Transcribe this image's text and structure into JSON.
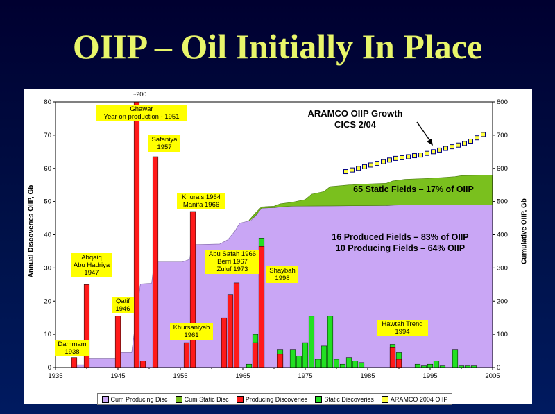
{
  "title": "OIIP – Oil Initially In Place",
  "colors": {
    "producing": "#ff1a1a",
    "static": "#22e022",
    "cum_producing": "#c9a6f5",
    "cum_static": "#7ac01e",
    "aramco": "#ffff40"
  },
  "chart_data": {
    "type": "bar",
    "ylabel": "Annual Discoveries OIIP, Gb",
    "y2label": "Cumulative OIIP, Gb",
    "xlim": [
      1935,
      2005
    ],
    "ylim": [
      0,
      80
    ],
    "y2lim": [
      0,
      800
    ],
    "xticks": [
      1935,
      1945,
      1955,
      1965,
      1975,
      1985,
      1995,
      2005
    ],
    "yticks": [
      0,
      10,
      20,
      30,
      40,
      50,
      60,
      70,
      80
    ],
    "y2ticks": [
      0,
      100,
      200,
      300,
      400,
      500,
      600,
      700,
      800
    ],
    "producing_discoveries": [
      {
        "x": 1938,
        "y": 3
      },
      {
        "x": 1940,
        "y": 25
      },
      {
        "x": 1945,
        "y": 15.5
      },
      {
        "x": 1948,
        "y": 200
      },
      {
        "x": 1949,
        "y": 2
      },
      {
        "x": 1951,
        "y": 63.5
      },
      {
        "x": 1956,
        "y": 7.5
      },
      {
        "x": 1957,
        "y": 47
      },
      {
        "x": 1962,
        "y": 15
      },
      {
        "x": 1963,
        "y": 22
      },
      {
        "x": 1964,
        "y": 25.5
      },
      {
        "x": 1967,
        "y": 7.5
      },
      {
        "x": 1968,
        "y": 36.5
      },
      {
        "x": 1971,
        "y": 4
      },
      {
        "x": 1989,
        "y": 6
      },
      {
        "x": 1990,
        "y": 2.5
      }
    ],
    "static_discoveries": [
      {
        "x": 1966,
        "y": 1
      },
      {
        "x": 1967,
        "y": 10
      },
      {
        "x": 1968,
        "y": 39
      },
      {
        "x": 1971,
        "y": 5.5
      },
      {
        "x": 1973,
        "y": 5.5
      },
      {
        "x": 1974,
        "y": 3.5
      },
      {
        "x": 1975,
        "y": 7.5
      },
      {
        "x": 1976,
        "y": 15.5
      },
      {
        "x": 1977,
        "y": 2.5
      },
      {
        "x": 1978,
        "y": 6.5
      },
      {
        "x": 1979,
        "y": 15.5
      },
      {
        "x": 1980,
        "y": 2.5
      },
      {
        "x": 1981,
        "y": 1
      },
      {
        "x": 1982,
        "y": 3
      },
      {
        "x": 1983,
        "y": 2
      },
      {
        "x": 1984,
        "y": 1.5
      },
      {
        "x": 1989,
        "y": 7
      },
      {
        "x": 1990,
        "y": 4.5
      },
      {
        "x": 1993,
        "y": 1
      },
      {
        "x": 1994,
        "y": 0.5
      },
      {
        "x": 1995,
        "y": 1
      },
      {
        "x": 1996,
        "y": 2
      },
      {
        "x": 1997,
        "y": 0.5
      },
      {
        "x": 1999,
        "y": 5.5
      },
      {
        "x": 2000,
        "y": 0.5
      },
      {
        "x": 2001,
        "y": 0.5
      },
      {
        "x": 2002,
        "y": 0.5
      }
    ],
    "cum_producing": [
      [
        1935,
        0
      ],
      [
        1937.8,
        0
      ],
      [
        1938.2,
        8
      ],
      [
        1939.8,
        8
      ],
      [
        1940.2,
        28
      ],
      [
        1944.8,
        28
      ],
      [
        1945.2,
        45
      ],
      [
        1947.2,
        45
      ],
      [
        1948.6,
        252
      ],
      [
        1950.4,
        254
      ],
      [
        1950.8,
        318
      ],
      [
        1955.3,
        318
      ],
      [
        1956.5,
        326
      ],
      [
        1956.8,
        370
      ],
      [
        1961.3,
        372
      ],
      [
        1962.6,
        385
      ],
      [
        1963.7,
        410
      ],
      [
        1964.5,
        435
      ],
      [
        1966.3,
        443
      ],
      [
        1967.2,
        460
      ],
      [
        1967.8,
        480
      ],
      [
        1970.5,
        482
      ],
      [
        1971.5,
        486
      ],
      [
        1988.5,
        488
      ],
      [
        1989.5,
        490
      ],
      [
        2005,
        490
      ]
    ],
    "cum_static": [
      [
        1966,
        444
      ],
      [
        1967,
        465
      ],
      [
        1968,
        484
      ],
      [
        1970,
        486
      ],
      [
        1971,
        493
      ],
      [
        1973,
        498
      ],
      [
        1975,
        506
      ],
      [
        1976,
        522
      ],
      [
        1978,
        530
      ],
      [
        1979,
        545
      ],
      [
        1982,
        550
      ],
      [
        1985,
        553
      ],
      [
        1988,
        555
      ],
      [
        1989,
        562
      ],
      [
        1991,
        567
      ],
      [
        1995,
        570
      ],
      [
        1999,
        575
      ],
      [
        2000,
        578
      ],
      [
        2005,
        580
      ]
    ],
    "aramco_2004_oiip": [
      [
        1981.5,
        590
      ],
      [
        1982.5,
        595
      ],
      [
        1983.5,
        600
      ],
      [
        1984.5,
        605
      ],
      [
        1985.5,
        610
      ],
      [
        1986.5,
        615
      ],
      [
        1987.5,
        620
      ],
      [
        1988.5,
        625
      ],
      [
        1989.5,
        630
      ],
      [
        1990.5,
        632
      ],
      [
        1991.5,
        635
      ],
      [
        1992.5,
        638
      ],
      [
        1993.5,
        640
      ],
      [
        1994.5,
        645
      ],
      [
        1995.5,
        650
      ],
      [
        1996.5,
        655
      ],
      [
        1997.5,
        660
      ],
      [
        1998.5,
        665
      ],
      [
        1999.5,
        670
      ],
      [
        2000.5,
        675
      ],
      [
        2001.5,
        682
      ],
      [
        2002.5,
        692
      ],
      [
        2003.5,
        702
      ]
    ],
    "legend": [
      "Cum Producing Disc",
      "Cum Static Disc",
      "Producing Discoveries",
      "Static Discoveries",
      "ARAMCO 2004 OIIP"
    ],
    "annotations": {
      "overflow": "~200",
      "ghawar": [
        "Ghawar",
        "Year on production - 1951"
      ],
      "safaniya": [
        "Safaniya",
        "1957"
      ],
      "khurais": [
        "Khurais 1964",
        "Manifa 1966"
      ],
      "abqaiq": [
        "Abqaiq",
        "Abu Hadriya",
        "1947"
      ],
      "qatif": [
        "Qatif",
        "1946"
      ],
      "dammam": [
        "Dammam",
        "1938"
      ],
      "khursaniyah": [
        "Khursaniyah",
        "1961"
      ],
      "abusafah": [
        "Abu Safah 1966",
        "Berri 1967",
        "Zuluf 1973"
      ],
      "shaybah": [
        "Shaybah",
        "1998"
      ],
      "hawtah": [
        "Hawtah Trend",
        "1994"
      ],
      "aramco_growth": [
        "ARAMCO OIIP Growth",
        "CICS 2/04"
      ],
      "static_fields": "65 Static Fields – 17% of OIIP",
      "produced_fields": [
        "16 Produced Fields – 83% of OIIP",
        "10 Producing Fields – 64% OIIP"
      ]
    }
  }
}
